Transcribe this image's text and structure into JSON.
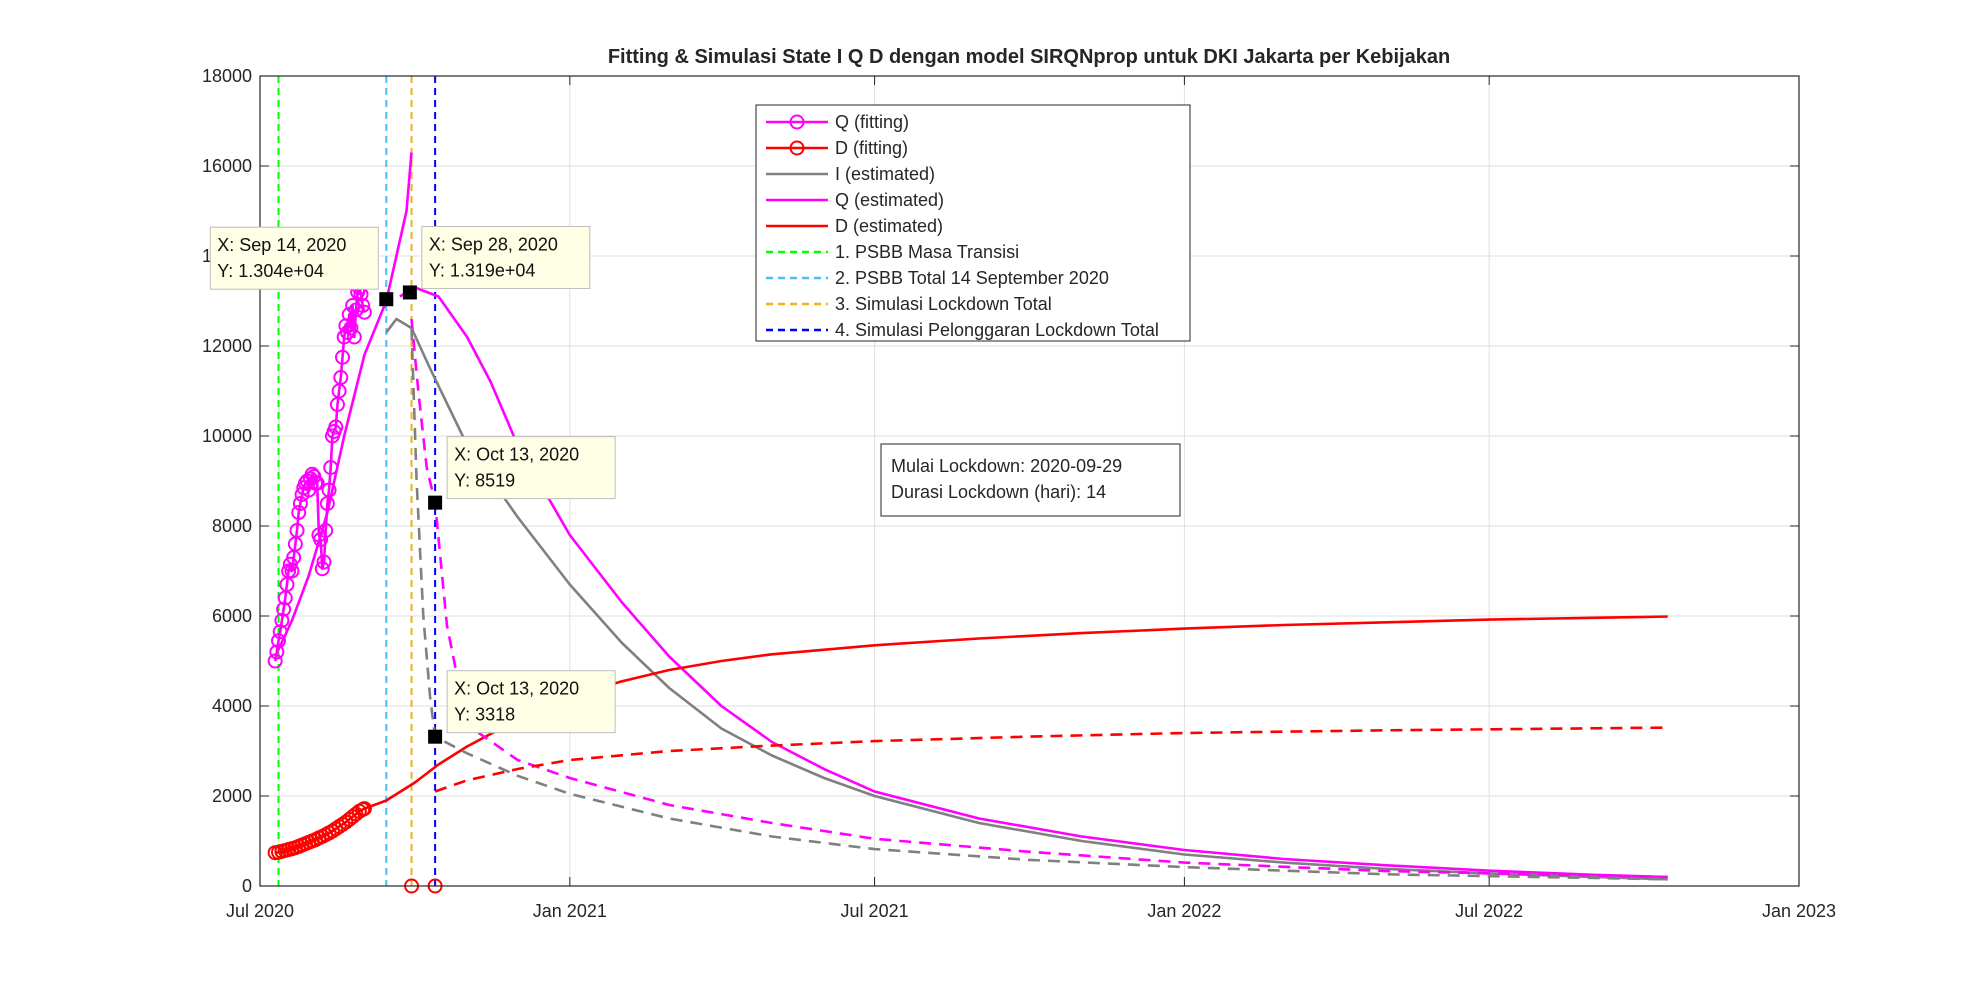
{
  "chart_data": {
    "type": "line",
    "title": "Fitting & Simulasi State  I Q D dengan model SIRQNprop untuk DKI Jakarta per Kebijakan",
    "xlabel": "",
    "ylabel": "",
    "x_axis": {
      "type": "date",
      "range": [
        "2020-07-01",
        "2023-01-01"
      ],
      "ticks": [
        {
          "date": "2020-07-01",
          "label": "Jul 2020"
        },
        {
          "date": "2021-01-01",
          "label": "Jan 2021"
        },
        {
          "date": "2021-07-01",
          "label": "Jul 2021"
        },
        {
          "date": "2022-01-01",
          "label": "Jan 2022"
        },
        {
          "date": "2022-07-01",
          "label": "Jul 2022"
        },
        {
          "date": "2023-01-01",
          "label": "Jan 2023"
        }
      ]
    },
    "y_axis": {
      "range": [
        0,
        18000
      ],
      "ticks": [
        0,
        2000,
        4000,
        6000,
        8000,
        10000,
        12000,
        14000,
        16000,
        18000
      ],
      "tick_labels": [
        "0",
        "2000",
        "4000",
        "6000",
        "8000",
        "10000",
        "12000",
        "14000",
        "16000",
        "18000"
      ]
    },
    "grid": true,
    "legend_position": "top-center",
    "colors": {
      "Q": "#ff00ff",
      "D": "#ff0000",
      "I": "#808080",
      "policy1": "#00ff00",
      "policy2": "#4dbeee",
      "policy3": "#edb120",
      "policy4": "#0000ff"
    },
    "legend": [
      {
        "label": "Q (fitting)",
        "color": "#ff00ff",
        "style": "solid-circle"
      },
      {
        "label": "D (fitting)",
        "color": "#ff0000",
        "style": "solid-circle"
      },
      {
        "label": "I (estimated)",
        "color": "#808080",
        "style": "solid"
      },
      {
        "label": "Q (estimated)",
        "color": "#ff00ff",
        "style": "solid"
      },
      {
        "label": "D (estimated)",
        "color": "#ff0000",
        "style": "solid"
      },
      {
        "label": "1. PSBB Masa Transisi",
        "color": "#00ff00",
        "style": "dashed"
      },
      {
        "label": "2. PSBB Total 14 September 2020",
        "color": "#4dbeee",
        "style": "dashed"
      },
      {
        "label": "3. Simulasi Lockdown Total",
        "color": "#edb120",
        "style": "dashed"
      },
      {
        "label": "4. Simulasi Pelonggaran Lockdown Total",
        "color": "#0000ff",
        "style": "dashed"
      }
    ],
    "vertical_lines": [
      {
        "date": "2020-07-12",
        "color": "#00ff00"
      },
      {
        "date": "2020-09-14",
        "color": "#4dbeee"
      },
      {
        "date": "2020-09-29",
        "color": "#edb120"
      },
      {
        "date": "2020-10-13",
        "color": "#0000ff"
      }
    ],
    "series": [
      {
        "name": "Q (fitting)",
        "color": "#ff00ff",
        "style": "solid",
        "marker": "circle",
        "points": [
          [
            "2020-07-10",
            5000
          ],
          [
            "2020-07-11",
            5200
          ],
          [
            "2020-07-12",
            5450
          ],
          [
            "2020-07-13",
            5650
          ],
          [
            "2020-07-14",
            5900
          ],
          [
            "2020-07-15",
            6150
          ],
          [
            "2020-07-16",
            6400
          ],
          [
            "2020-07-17",
            6700
          ],
          [
            "2020-07-18",
            7000
          ],
          [
            "2020-07-19",
            7150
          ],
          [
            "2020-07-20",
            7000
          ],
          [
            "2020-07-21",
            7300
          ],
          [
            "2020-07-22",
            7600
          ],
          [
            "2020-07-23",
            7900
          ],
          [
            "2020-07-24",
            8300
          ],
          [
            "2020-07-25",
            8500
          ],
          [
            "2020-07-26",
            8700
          ],
          [
            "2020-07-27",
            8850
          ],
          [
            "2020-07-28",
            8950
          ],
          [
            "2020-07-29",
            9000
          ],
          [
            "2020-07-30",
            8800
          ],
          [
            "2020-07-31",
            9050
          ],
          [
            "2020-08-01",
            9150
          ],
          [
            "2020-08-02",
            9100
          ],
          [
            "2020-08-03",
            8950
          ],
          [
            "2020-08-04",
            8950
          ],
          [
            "2020-08-05",
            7800
          ],
          [
            "2020-08-06",
            7700
          ],
          [
            "2020-08-07",
            7050
          ],
          [
            "2020-08-08",
            7200
          ],
          [
            "2020-08-09",
            7900
          ],
          [
            "2020-08-10",
            8500
          ],
          [
            "2020-08-11",
            8800
          ],
          [
            "2020-08-12",
            9300
          ],
          [
            "2020-08-13",
            10000
          ],
          [
            "2020-08-14",
            10100
          ],
          [
            "2020-08-15",
            10200
          ],
          [
            "2020-08-16",
            10700
          ],
          [
            "2020-08-17",
            11000
          ],
          [
            "2020-08-18",
            11300
          ],
          [
            "2020-08-19",
            11750
          ],
          [
            "2020-08-20",
            12200
          ],
          [
            "2020-08-21",
            12450
          ],
          [
            "2020-08-22",
            12300
          ],
          [
            "2020-08-23",
            12700
          ],
          [
            "2020-08-24",
            12400
          ],
          [
            "2020-08-25",
            12900
          ],
          [
            "2020-08-26",
            12200
          ],
          [
            "2020-08-27",
            12800
          ],
          [
            "2020-08-28",
            13200
          ],
          [
            "2020-08-29",
            13300
          ],
          [
            "2020-08-30",
            13150
          ],
          [
            "2020-08-31",
            12900
          ],
          [
            "2020-09-01",
            12750
          ]
        ]
      },
      {
        "name": "D (fitting)",
        "color": "#ff0000",
        "style": "solid",
        "marker": "circle",
        "points": [
          [
            "2020-07-10",
            740
          ],
          [
            "2020-07-12",
            750
          ],
          [
            "2020-07-14",
            770
          ],
          [
            "2020-07-16",
            790
          ],
          [
            "2020-07-18",
            810
          ],
          [
            "2020-07-20",
            830
          ],
          [
            "2020-07-22",
            850
          ],
          [
            "2020-07-24",
            880
          ],
          [
            "2020-07-26",
            910
          ],
          [
            "2020-07-28",
            940
          ],
          [
            "2020-07-30",
            970
          ],
          [
            "2020-08-01",
            1000
          ],
          [
            "2020-08-03",
            1030
          ],
          [
            "2020-08-05",
            1070
          ],
          [
            "2020-08-07",
            1100
          ],
          [
            "2020-08-09",
            1140
          ],
          [
            "2020-08-11",
            1180
          ],
          [
            "2020-08-13",
            1220
          ],
          [
            "2020-08-15",
            1270
          ],
          [
            "2020-08-17",
            1320
          ],
          [
            "2020-08-19",
            1370
          ],
          [
            "2020-08-21",
            1420
          ],
          [
            "2020-08-23",
            1480
          ],
          [
            "2020-08-25",
            1540
          ],
          [
            "2020-08-27",
            1600
          ],
          [
            "2020-08-29",
            1660
          ],
          [
            "2020-08-31",
            1700
          ],
          [
            "2020-09-01",
            1720
          ]
        ]
      },
      {
        "name": "D (fitting) - simulated zero",
        "color": "#ff0000",
        "style": "none",
        "marker": "circle",
        "points": [
          [
            "2020-09-29",
            0
          ],
          [
            "2020-10-13",
            0
          ]
        ]
      },
      {
        "name": "Q fit (early curve)",
        "color": "#ff00ff",
        "style": "solid",
        "marker": "none",
        "points": [
          [
            "2020-07-10",
            5100
          ],
          [
            "2020-07-20",
            5900
          ],
          [
            "2020-07-30",
            6900
          ],
          [
            "2020-08-10",
            8300
          ],
          [
            "2020-08-20",
            10000
          ],
          [
            "2020-09-01",
            11800
          ],
          [
            "2020-09-14",
            13000
          ]
        ]
      },
      {
        "name": "Q (estimated) - no-lockdown",
        "color": "#ff00ff",
        "style": "solid",
        "marker": "none",
        "points": [
          [
            "2020-09-14",
            13000
          ],
          [
            "2020-09-20",
            14000
          ],
          [
            "2020-09-26",
            15000
          ],
          [
            "2020-09-29",
            16300
          ]
        ]
      },
      {
        "name": "Q (estimated)",
        "color": "#ff00ff",
        "style": "solid",
        "marker": "none",
        "points": [
          [
            "2020-09-22",
            13100
          ],
          [
            "2020-10-01",
            13300
          ],
          [
            "2020-10-15",
            13100
          ],
          [
            "2020-11-01",
            12200
          ],
          [
            "2020-11-15",
            11200
          ],
          [
            "2020-12-01",
            9800
          ],
          [
            "2020-12-15",
            8900
          ],
          [
            "2021-01-01",
            7800
          ],
          [
            "2021-02-01",
            6300
          ],
          [
            "2021-03-01",
            5100
          ],
          [
            "2021-04-01",
            4000
          ],
          [
            "2021-05-01",
            3200
          ],
          [
            "2021-06-01",
            2600
          ],
          [
            "2021-07-01",
            2100
          ],
          [
            "2021-09-01",
            1500
          ],
          [
            "2021-11-01",
            1100
          ],
          [
            "2022-01-01",
            800
          ],
          [
            "2022-03-01",
            600
          ],
          [
            "2022-05-01",
            460
          ],
          [
            "2022-07-01",
            340
          ],
          [
            "2022-09-01",
            250
          ],
          [
            "2022-10-15",
            200
          ]
        ]
      },
      {
        "name": "I (estimated)",
        "color": "#808080",
        "style": "solid",
        "marker": "none",
        "points": [
          [
            "2020-09-14",
            12300
          ],
          [
            "2020-09-20",
            12600
          ],
          [
            "2020-09-29",
            12400
          ],
          [
            "2020-10-10",
            11500
          ],
          [
            "2020-11-01",
            9800
          ],
          [
            "2020-12-01",
            8200
          ],
          [
            "2021-01-01",
            6700
          ],
          [
            "2021-02-01",
            5400
          ],
          [
            "2021-03-01",
            4400
          ],
          [
            "2021-04-01",
            3500
          ],
          [
            "2021-05-01",
            2900
          ],
          [
            "2021-06-01",
            2400
          ],
          [
            "2021-07-01",
            2000
          ],
          [
            "2021-09-01",
            1400
          ],
          [
            "2021-11-01",
            1000
          ],
          [
            "2022-01-01",
            700
          ],
          [
            "2022-03-01",
            520
          ],
          [
            "2022-05-01",
            380
          ],
          [
            "2022-07-01",
            280
          ],
          [
            "2022-09-01",
            200
          ],
          [
            "2022-10-15",
            150
          ]
        ]
      },
      {
        "name": "D (estimated)",
        "color": "#ff0000",
        "style": "solid",
        "marker": "none",
        "points": [
          [
            "2020-09-01",
            1720
          ],
          [
            "2020-09-14",
            1900
          ],
          [
            "2020-10-01",
            2300
          ],
          [
            "2020-10-15",
            2700
          ],
          [
            "2020-11-01",
            3100
          ],
          [
            "2020-12-01",
            3700
          ],
          [
            "2021-01-01",
            4200
          ],
          [
            "2021-02-01",
            4550
          ],
          [
            "2021-03-01",
            4800
          ],
          [
            "2021-04-01",
            5000
          ],
          [
            "2021-05-01",
            5150
          ],
          [
            "2021-07-01",
            5350
          ],
          [
            "2021-09-01",
            5500
          ],
          [
            "2021-11-01",
            5620
          ],
          [
            "2022-01-01",
            5720
          ],
          [
            "2022-03-01",
            5800
          ],
          [
            "2022-05-01",
            5860
          ],
          [
            "2022-07-01",
            5920
          ],
          [
            "2022-09-01",
            5960
          ],
          [
            "2022-10-15",
            5990
          ]
        ]
      },
      {
        "name": "Q (simulated lockdown)",
        "color": "#ff00ff",
        "style": "dashed",
        "marker": "none",
        "points": [
          [
            "2020-09-29",
            12600
          ],
          [
            "2020-10-03",
            11000
          ],
          [
            "2020-10-08",
            9300
          ],
          [
            "2020-10-13",
            8519
          ],
          [
            "2020-10-20",
            5800
          ],
          [
            "2020-10-28",
            4300
          ],
          [
            "2020-11-08",
            3400
          ],
          [
            "2020-12-01",
            2800
          ],
          [
            "2021-01-01",
            2400
          ],
          [
            "2021-03-01",
            1800
          ],
          [
            "2021-05-01",
            1400
          ],
          [
            "2021-07-01",
            1050
          ],
          [
            "2021-10-01",
            760
          ],
          [
            "2022-01-01",
            520
          ],
          [
            "2022-05-01",
            330
          ],
          [
            "2022-10-15",
            200
          ]
        ]
      },
      {
        "name": "I (simulated lockdown)",
        "color": "#808080",
        "style": "dashed",
        "marker": "none",
        "points": [
          [
            "2020-09-29",
            12400
          ],
          [
            "2020-10-02",
            9000
          ],
          [
            "2020-10-06",
            6000
          ],
          [
            "2020-10-10",
            4200
          ],
          [
            "2020-10-13",
            3318
          ],
          [
            "2020-11-01",
            2950
          ],
          [
            "2020-12-01",
            2450
          ],
          [
            "2021-01-01",
            2050
          ],
          [
            "2021-03-01",
            1500
          ],
          [
            "2021-05-01",
            1100
          ],
          [
            "2021-07-01",
            820
          ],
          [
            "2021-10-01",
            580
          ],
          [
            "2022-01-01",
            420
          ],
          [
            "2022-05-01",
            260
          ],
          [
            "2022-10-15",
            150
          ]
        ]
      },
      {
        "name": "D (simulated lockdown)",
        "color": "#ff0000",
        "style": "dashed",
        "marker": "none",
        "points": [
          [
            "2020-10-13",
            2100
          ],
          [
            "2020-11-01",
            2350
          ],
          [
            "2020-12-01",
            2600
          ],
          [
            "2021-01-01",
            2800
          ],
          [
            "2021-03-01",
            3000
          ],
          [
            "2021-05-01",
            3120
          ],
          [
            "2021-07-01",
            3220
          ],
          [
            "2021-10-01",
            3320
          ],
          [
            "2022-01-01",
            3400
          ],
          [
            "2022-05-01",
            3460
          ],
          [
            "2022-10-15",
            3520
          ]
        ]
      }
    ],
    "datatips": [
      {
        "date": "2020-09-14",
        "y": 13040,
        "x_text": "X: Sep 14, 2020",
        "y_text": "Y: 1.304e+04",
        "box": "upper-left"
      },
      {
        "date": "2020-09-28",
        "y": 13190,
        "x_text": "X: Sep 28, 2020",
        "y_text": "Y: 1.319e+04",
        "box": "upper-right"
      },
      {
        "date": "2020-10-13",
        "y": 8519,
        "x_text": "X: Oct 13, 2020",
        "y_text": "Y: 8519",
        "box": "upper-right"
      },
      {
        "date": "2020-10-13",
        "y": 3318,
        "x_text": "X: Oct 13, 2020",
        "y_text": "Y: 3318",
        "box": "upper-right"
      }
    ],
    "annotation": {
      "line1": "Mulai Lockdown: 2020-09-29",
      "line2": "Durasi Lockdown (hari): 14"
    }
  }
}
